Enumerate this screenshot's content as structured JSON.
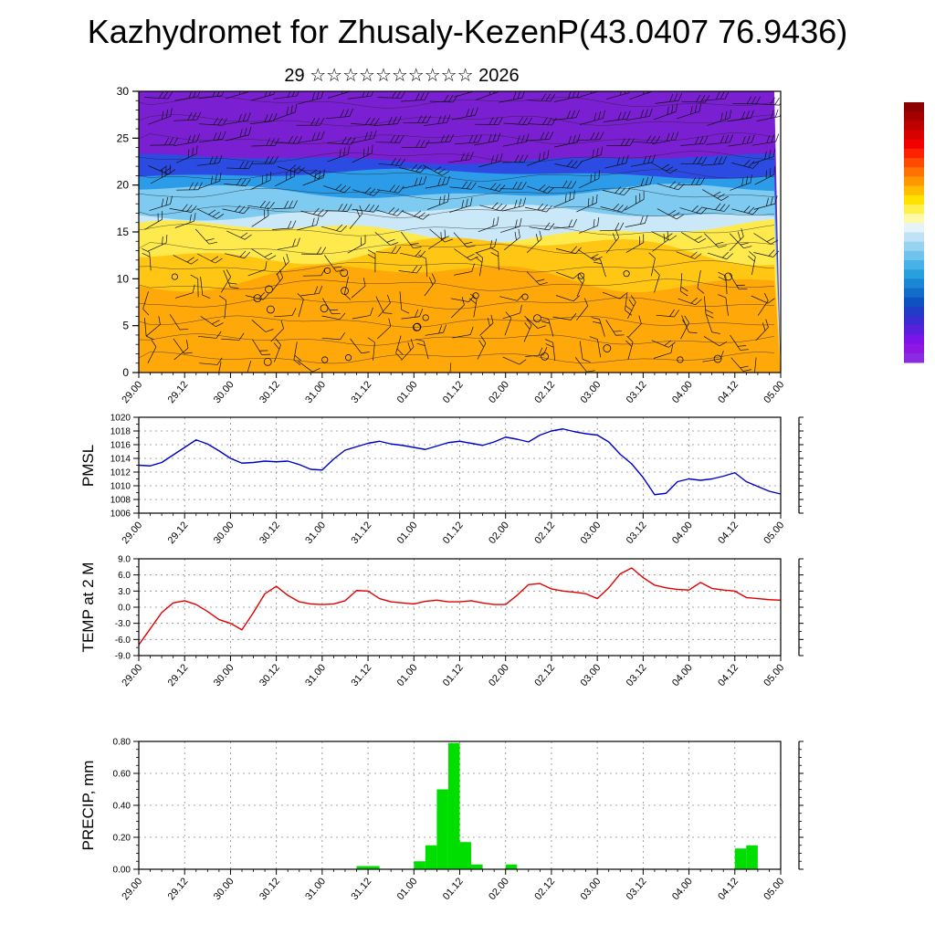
{
  "title": "Kazhydromet for Zhusaly-KezenP(43.0407 76.9436)",
  "subtitle": "29 ☆☆☆☆☆☆☆☆☆☆ 2026",
  "time_labels": [
    "29.00",
    "29.12",
    "30.00",
    "30.12",
    "31.00",
    "31.12",
    "01.00",
    "01.12",
    "02.00",
    "02.12",
    "03.00",
    "03.12",
    "04.00",
    "04.12",
    "05.00"
  ],
  "colorbar": {
    "colors": [
      "#8B0000",
      "#A50000",
      "#BF0000",
      "#D90000",
      "#F20000",
      "#FF2200",
      "#FF4A00",
      "#FF7100",
      "#FF9800",
      "#FFBF00",
      "#FFE200",
      "#FFF04E",
      "#FFF9A8",
      "#E6F3FB",
      "#BFE3F6",
      "#97D3F1",
      "#6FC3EC",
      "#47B2E7",
      "#27A0DE",
      "#1B86D4",
      "#146CCA",
      "#0D52C0",
      "#1F3DC6",
      "#3A2BD2",
      "#5A1EDD",
      "#7A14E8",
      "#8F17E2",
      "#8A2BE2"
    ]
  },
  "chart_data": [
    {
      "id": "wind-profile",
      "type": "heatmap",
      "description": "Vertical wind/temperature profile with wind barbs",
      "ylabel": "",
      "ylim": [
        0,
        30
      ],
      "yticks": [
        0,
        5,
        10,
        15,
        20,
        25,
        30
      ],
      "layers": [
        {
          "top": 30.0,
          "color": "#7B1FD2"
        },
        {
          "top": 22.8,
          "color": "#2B4BE2"
        },
        {
          "top": 21.2,
          "color": "#2D9CE8"
        },
        {
          "top": 19.3,
          "color": "#7ECAF1"
        },
        {
          "top": 17.1,
          "color": "#CBE8F8"
        },
        {
          "top": 15.1,
          "color": "#FFEA4E"
        },
        {
          "top": 13.1,
          "color": "#FFC614"
        },
        {
          "top": 10.2,
          "color": "#FFA80A"
        }
      ]
    },
    {
      "id": "pmsl",
      "type": "line",
      "ylabel": "PMSL",
      "color": "#0000C8",
      "ylim": [
        1006,
        1020
      ],
      "ytick_step": 2,
      "ytick_minor": 1,
      "ytick_decimals": 0,
      "x_step_hours": 3,
      "values": [
        1013.0,
        1012.9,
        1013.4,
        1014.5,
        1015.6,
        1016.7,
        1016.1,
        1015.1,
        1014.0,
        1013.3,
        1013.4,
        1013.6,
        1013.5,
        1013.6,
        1013.1,
        1012.4,
        1012.3,
        1013.9,
        1015.2,
        1015.7,
        1016.2,
        1016.5,
        1016.1,
        1015.9,
        1015.6,
        1015.3,
        1015.8,
        1016.3,
        1016.5,
        1016.2,
        1015.9,
        1016.4,
        1017.1,
        1016.8,
        1016.4,
        1017.4,
        1018.0,
        1018.3,
        1017.9,
        1017.6,
        1017.4,
        1016.4,
        1014.6,
        1013.2,
        1011.2,
        1008.7,
        1008.9,
        1010.6,
        1011.0,
        1010.8,
        1011.0,
        1011.4,
        1011.9,
        1010.6,
        1009.9,
        1009.2,
        1008.8
      ]
    },
    {
      "id": "temp2m",
      "type": "line",
      "ylabel": "TEMP at 2 M",
      "color": "#E00000",
      "ylim": [
        -9,
        9
      ],
      "ytick_step": 3,
      "ytick_minor": 1.5,
      "ytick_decimals": 1,
      "x_step_hours": 3,
      "values": [
        -7.0,
        -4.0,
        -1.0,
        0.8,
        1.2,
        0.5,
        -0.8,
        -2.3,
        -3.0,
        -4.2,
        -1.0,
        2.5,
        3.9,
        2.2,
        1.0,
        0.6,
        0.5,
        0.6,
        1.2,
        3.1,
        3.0,
        1.6,
        1.0,
        0.8,
        0.6,
        1.1,
        1.3,
        1.0,
        1.0,
        1.2,
        0.8,
        0.5,
        0.5,
        2.2,
        4.2,
        4.4,
        3.4,
        3.0,
        2.8,
        2.5,
        1.6,
        3.6,
        6.2,
        7.3,
        5.5,
        4.1,
        3.6,
        3.3,
        3.2,
        4.6,
        3.5,
        3.2,
        3.0,
        1.8,
        1.6,
        1.4,
        1.3
      ]
    },
    {
      "id": "precip",
      "type": "bar",
      "ylabel": "PRECIP, mm",
      "color": "#00DE00",
      "ylim": [
        0,
        0.8
      ],
      "ytick_step": 0.2,
      "ytick_minor": 0.05,
      "ytick_decimals": 2,
      "x_step_hours": 3,
      "values": [
        0,
        0,
        0,
        0,
        0,
        0,
        0,
        0,
        0,
        0,
        0,
        0,
        0,
        0,
        0,
        0,
        0,
        0,
        0,
        0.02,
        0.02,
        0,
        0,
        0,
        0.05,
        0.15,
        0.5,
        0.79,
        0.17,
        0.03,
        0,
        0,
        0.03,
        0,
        0,
        0,
        0,
        0,
        0,
        0,
        0,
        0,
        0,
        0,
        0,
        0,
        0,
        0,
        0,
        0,
        0,
        0,
        0.13,
        0.15,
        0,
        0
      ]
    }
  ]
}
